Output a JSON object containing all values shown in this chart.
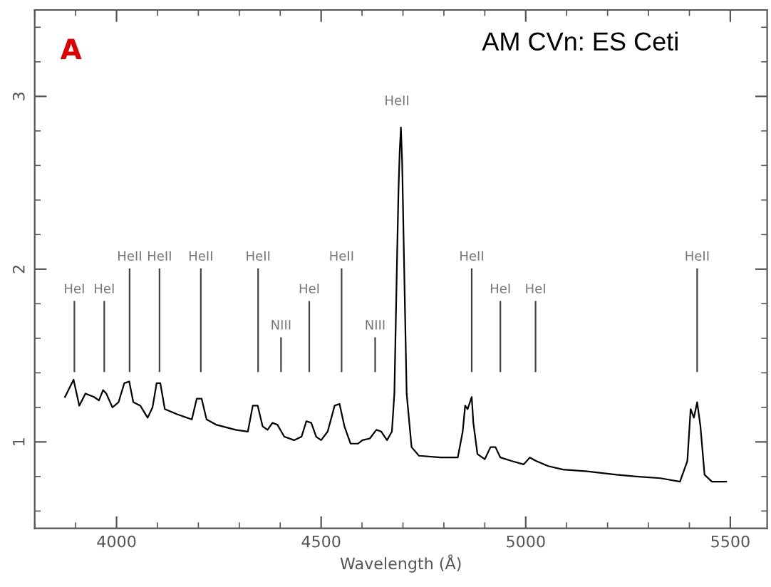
{
  "chart_data": {
    "type": "line",
    "title": "AM CVn: ES Ceti",
    "xlabel": "Wavelength (Å)",
    "xlim": [
      3800,
      5590
    ],
    "ylim": [
      0.5,
      3.5
    ],
    "xticks": [
      4000,
      4500,
      5000,
      5500
    ],
    "yticks": [
      1,
      2,
      3
    ],
    "grid": false,
    "legend": false,
    "marker": "none",
    "line_style": "solid",
    "series": [
      {
        "color": "#000000",
        "x": [
          3874,
          3895,
          3909,
          3924,
          3945,
          3957,
          3967,
          3975,
          3990,
          4005,
          4019,
          4031,
          4041,
          4058,
          4076,
          4088,
          4098,
          4107,
          4118,
          4148,
          4184,
          4196,
          4208,
          4220,
          4243,
          4291,
          4321,
          4333,
          4345,
          4357,
          4369,
          4381,
          4393,
          4410,
          4434,
          4452,
          4464,
          4476,
          4488,
          4500,
          4516,
          4533,
          4545,
          4557,
          4572,
          4590,
          4601,
          4619,
          4635,
          4647,
          4661,
          4673,
          4679,
          4685,
          4689,
          4692,
          4695,
          4698,
          4703,
          4709,
          4721,
          4739,
          4792,
          4834,
          4846,
          4852,
          4858,
          4868,
          4872,
          4882,
          4900,
          4914,
          4926,
          4938,
          4965,
          4995,
          5010,
          5025,
          5055,
          5091,
          5150,
          5222,
          5270,
          5329,
          5377,
          5395,
          5403,
          5411,
          5419,
          5427,
          5437,
          5455,
          5473,
          5490
        ],
        "values": [
          1.26,
          1.36,
          1.21,
          1.28,
          1.26,
          1.24,
          1.3,
          1.28,
          1.2,
          1.23,
          1.34,
          1.35,
          1.23,
          1.21,
          1.14,
          1.2,
          1.34,
          1.34,
          1.19,
          1.16,
          1.13,
          1.25,
          1.25,
          1.13,
          1.1,
          1.07,
          1.06,
          1.21,
          1.21,
          1.09,
          1.07,
          1.11,
          1.1,
          1.03,
          1.01,
          1.03,
          1.12,
          1.11,
          1.03,
          1.01,
          1.06,
          1.21,
          1.22,
          1.09,
          0.99,
          0.99,
          1.01,
          1.02,
          1.07,
          1.06,
          1.01,
          1.06,
          1.28,
          2.0,
          2.45,
          2.68,
          2.82,
          2.62,
          2.0,
          1.28,
          0.97,
          0.92,
          0.91,
          0.91,
          1.06,
          1.21,
          1.19,
          1.26,
          1.11,
          0.93,
          0.9,
          0.97,
          0.97,
          0.91,
          0.89,
          0.87,
          0.91,
          0.89,
          0.86,
          0.84,
          0.83,
          0.81,
          0.8,
          0.79,
          0.77,
          0.89,
          1.19,
          1.14,
          1.23,
          1.09,
          0.81,
          0.77,
          0.77,
          0.77
        ]
      }
    ],
    "annotations": [
      "A",
      {
        "text": "HeI",
        "x": 3897
      },
      {
        "text": "HeI",
        "x": 3970
      },
      {
        "text": "HeII",
        "x": 4032
      },
      {
        "text": "HeII",
        "x": 4105
      },
      {
        "text": "HeII",
        "x": 4206
      },
      {
        "text": "HeII",
        "x": 4346
      },
      {
        "text": "NIII",
        "x": 4402
      },
      {
        "text": "HeI",
        "x": 4471
      },
      {
        "text": "HeII",
        "x": 4550
      },
      {
        "text": "NIII",
        "x": 4632
      },
      {
        "text": "HeII",
        "x": 4695,
        "y": 2.82
      },
      {
        "text": "HeII",
        "x": 4868
      },
      {
        "text": "HeI",
        "x": 4938
      },
      {
        "text": "HeI",
        "x": 5024
      },
      {
        "text": "HeII",
        "x": 5419
      }
    ]
  }
}
